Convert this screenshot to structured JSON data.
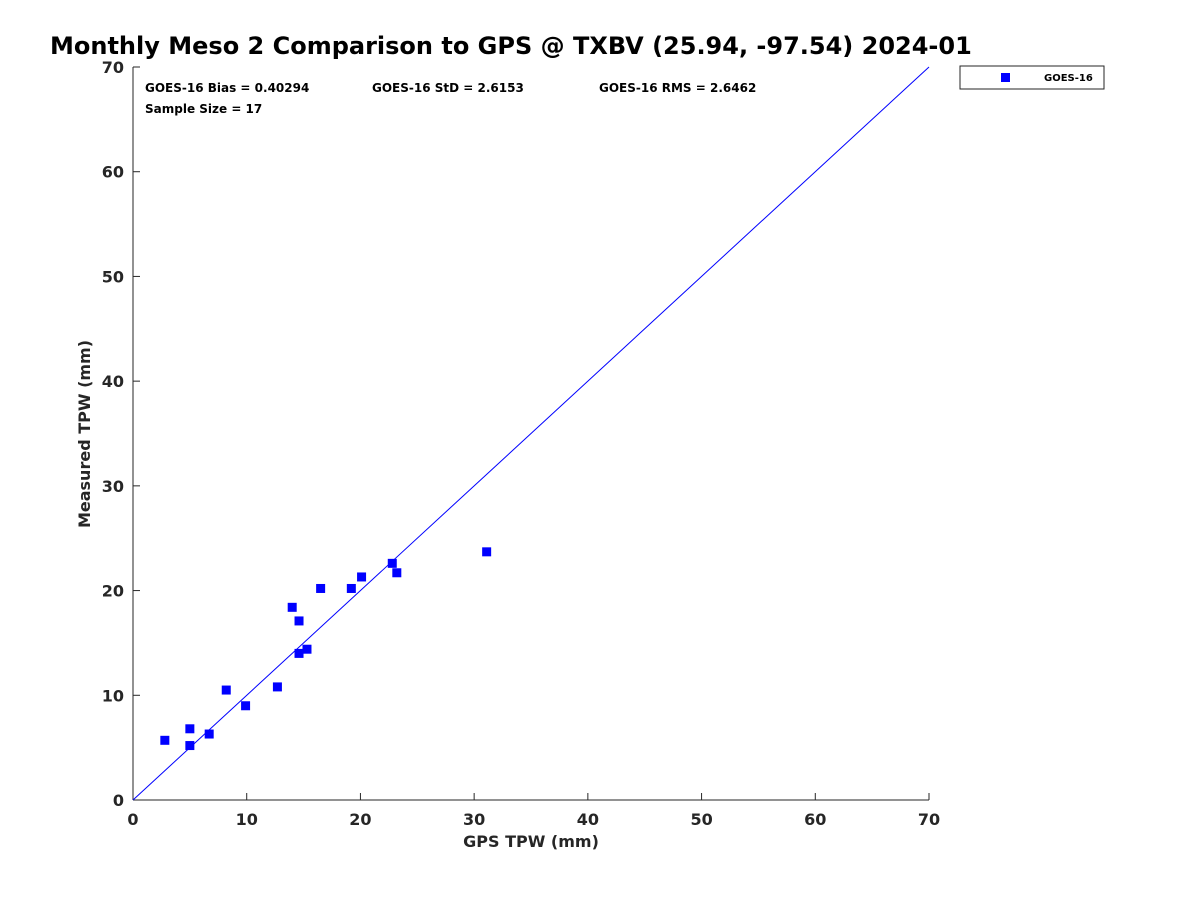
{
  "chart_data": {
    "type": "scatter",
    "title": "Monthly Meso 2 Comparison to GPS @ TXBV (25.94, -97.54) 2024-01",
    "xlabel": "GPS TPW (mm)",
    "ylabel": "Measured TPW (mm)",
    "xlim": [
      0,
      70
    ],
    "ylim": [
      0,
      70
    ],
    "xticks": [
      "0",
      "10",
      "20",
      "30",
      "40",
      "50",
      "60",
      "70"
    ],
    "yticks": [
      "0",
      "10",
      "20",
      "30",
      "40",
      "50",
      "60",
      "70"
    ],
    "grid": false,
    "legend_position": "top-right outside",
    "reference_line": {
      "type": "one-to-one",
      "color": "#0000ff"
    },
    "series": [
      {
        "name": "GOES-16",
        "color": "#0000ff",
        "marker": "square",
        "points": [
          [
            2.8,
            5.7
          ],
          [
            5.0,
            5.2
          ],
          [
            5.0,
            6.8
          ],
          [
            6.7,
            6.3
          ],
          [
            8.2,
            10.5
          ],
          [
            9.9,
            9.0
          ],
          [
            12.7,
            10.8
          ],
          [
            14.0,
            18.4
          ],
          [
            14.6,
            17.1
          ],
          [
            14.6,
            14.0
          ],
          [
            15.3,
            14.4
          ],
          [
            16.5,
            20.2
          ],
          [
            19.2,
            20.2
          ],
          [
            20.1,
            21.3
          ],
          [
            22.8,
            22.6
          ],
          [
            23.2,
            21.7
          ],
          [
            31.1,
            23.7
          ]
        ]
      }
    ],
    "stats": {
      "bias": "GOES-16 Bias = 0.40294",
      "std": "GOES-16 StD = 2.6153",
      "rms": "GOES-16 RMS = 2.6462",
      "sample_size": "Sample Size = 17"
    }
  }
}
